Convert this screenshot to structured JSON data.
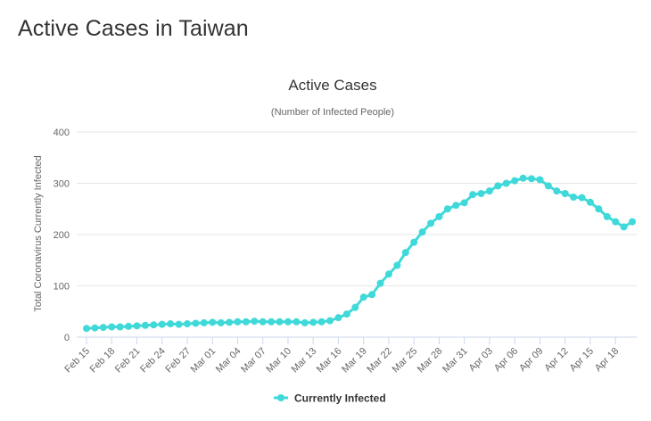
{
  "page": {
    "heading": "Active Cases in Taiwan"
  },
  "colors": {
    "series": "#40d9d9",
    "grid": "#e6e6e6",
    "axis_line": "#ccd6eb"
  },
  "chart_data": {
    "type": "line",
    "title": "Active Cases",
    "subtitle": "(Number of Infected People)",
    "ylabel": "Total Coronavirus Currently Infected",
    "xlabel": "",
    "ylim": [
      0,
      400
    ],
    "yticks": [
      0,
      100,
      200,
      300,
      400
    ],
    "grid": true,
    "legend": "bottom-center",
    "x_tick_labels": [
      "Feb 15",
      "Feb 18",
      "Feb 21",
      "Feb 24",
      "Feb 27",
      "Mar 01",
      "Mar 04",
      "Mar 07",
      "Mar 10",
      "Mar 13",
      "Mar 16",
      "Mar 19",
      "Mar 22",
      "Mar 25",
      "Mar 28",
      "Mar 31",
      "Apr 03",
      "Apr 06",
      "Apr 09",
      "Apr 12",
      "Apr 15",
      "Apr 18"
    ],
    "series": [
      {
        "name": "Currently Infected",
        "values": [
          17,
          18,
          19,
          20,
          20,
          21,
          22,
          23,
          24,
          25,
          26,
          25,
          26,
          27,
          28,
          29,
          28,
          29,
          30,
          30,
          31,
          30,
          30,
          30,
          30,
          30,
          28,
          29,
          30,
          32,
          38,
          45,
          58,
          78,
          83,
          105,
          123,
          140,
          165,
          185,
          205,
          222,
          235,
          250,
          257,
          262,
          278,
          280,
          285,
          295,
          300,
          305,
          310,
          309,
          307,
          295,
          285,
          280,
          273,
          272,
          263,
          250,
          235,
          225,
          215,
          225
        ]
      }
    ]
  }
}
